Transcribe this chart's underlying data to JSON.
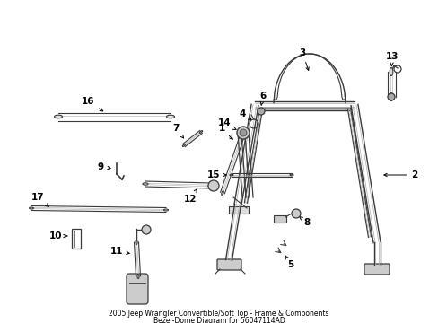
{
  "title_line1": "2005 Jeep Wrangler Convertible/Soft Top - Frame & Components",
  "title_line2": "Bezel-Dome Diagram for 56047114AD",
  "bg_color": "#ffffff",
  "lc": "#3a3a3a",
  "tc": "#000000",
  "fig_width": 4.89,
  "fig_height": 3.6,
  "dpi": 100
}
